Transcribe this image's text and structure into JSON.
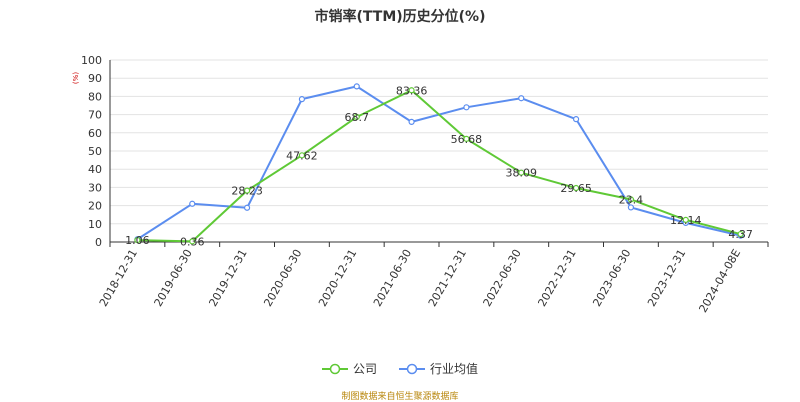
{
  "chart_data": {
    "type": "line",
    "title": "市销率(TTM)历史分位(%)",
    "ylabel": "(%)",
    "ylim": [
      0,
      100
    ],
    "ytick_step": 10,
    "grid": true,
    "legend_position": "bottom",
    "categories": [
      "2018-12-31",
      "2019-06-30",
      "2019-12-31",
      "2020-06-30",
      "2020-12-31",
      "2021-06-30",
      "2021-12-31",
      "2022-06-30",
      "2022-12-31",
      "2023-06-30",
      "2023-12-31",
      "2024-04-08E"
    ],
    "series": [
      {
        "name": "公司",
        "color": "#5fc936",
        "values": [
          1.06,
          0.36,
          28.23,
          47.62,
          68.7,
          83.36,
          56.68,
          38.09,
          29.65,
          23.4,
          12.14,
          4.37
        ],
        "labels": [
          "1.06",
          "0.36",
          "28.23",
          "47.62",
          "68.7",
          "83.36",
          "56.68",
          "38.09",
          "29.65",
          "23.4",
          "12.14",
          "4.37"
        ]
      },
      {
        "name": "行业均值",
        "color": "#5b8def",
        "values": [
          1.5,
          21.0,
          18.8,
          78.5,
          85.5,
          66.0,
          74.0,
          79.0,
          67.5,
          19.0,
          10.5,
          3.5
        ]
      }
    ]
  },
  "source_text": "制图数据来自恒生聚源数据库"
}
